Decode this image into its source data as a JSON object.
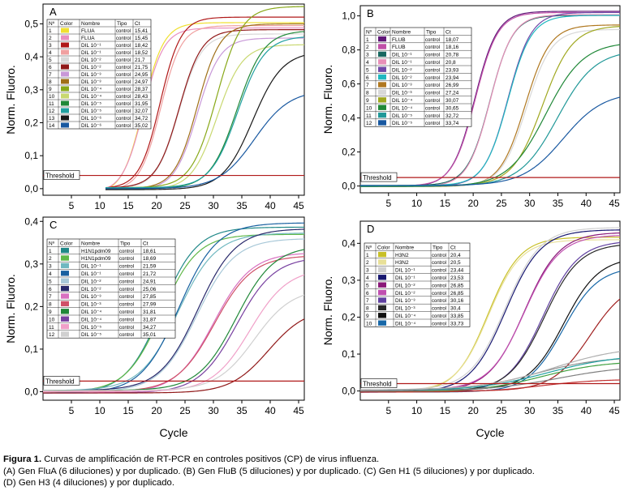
{
  "figure": {
    "xlabel": "Cycle",
    "ylabel": "Norm. Fluoro.",
    "threshold_label": "Threshold",
    "colors": {
      "threshold": "#b01a1a",
      "frame": "#000000"
    }
  },
  "legend_headers": [
    "Nº",
    "Color",
    "Nombre",
    "Tipo",
    "Ct"
  ],
  "chart_data": [
    {
      "id": "A",
      "type": "line",
      "title": "A",
      "xlabel": "",
      "ylabel": "Norm. Fluoro.",
      "xlim": [
        0,
        46
      ],
      "ylim": [
        -0.02,
        0.56
      ],
      "xticks": [
        5,
        10,
        15,
        20,
        25,
        30,
        35,
        40,
        45
      ],
      "ytick_values": [
        0,
        0.1,
        0.2,
        0.3,
        0.4,
        0.5
      ],
      "ytick_labels": [
        "0,0",
        "0,1",
        "0,2",
        "0,3",
        "0,4",
        "0,5"
      ],
      "threshold": 0.04,
      "baseline_start": 11,
      "legend": [
        {
          "n": "1",
          "color": "#f0e030",
          "name": "FLUA",
          "type": "control",
          "ct": "15,41"
        },
        {
          "n": "2",
          "color": "#e890c0",
          "name": "FLUA",
          "type": "control",
          "ct": "15,45"
        },
        {
          "n": "3",
          "color": "#b01818",
          "name": "DIL 10⁻¹",
          "type": "control",
          "ct": "18,42"
        },
        {
          "n": "4",
          "color": "#f0a0a0",
          "name": "DIL 10⁻¹",
          "type": "control",
          "ct": "18,52"
        },
        {
          "n": "5",
          "color": "#d8d8d8",
          "name": "DIL 10⁻²",
          "type": "control",
          "ct": "21,7"
        },
        {
          "n": "6",
          "color": "#901818",
          "name": "DIL 10⁻²",
          "type": "control",
          "ct": "21,75"
        },
        {
          "n": "7",
          "color": "#c898d8",
          "name": "DIL 10⁻³",
          "type": "control",
          "ct": "24,95"
        },
        {
          "n": "8",
          "color": "#a07018",
          "name": "DIL 10⁻³",
          "type": "control",
          "ct": "24,97"
        },
        {
          "n": "9",
          "color": "#88a818",
          "name": "DIL 10⁻⁴",
          "type": "control",
          "ct": "28,37"
        },
        {
          "n": "10",
          "color": "#c8d870",
          "name": "DIL 10⁻⁴",
          "type": "control",
          "ct": "28,43"
        },
        {
          "n": "11",
          "color": "#208838",
          "name": "DIL 10⁻⁵",
          "type": "control",
          "ct": "31,95"
        },
        {
          "n": "12",
          "color": "#20a0a0",
          "name": "DIL 10⁻⁵",
          "type": "control",
          "ct": "32,07"
        },
        {
          "n": "13",
          "color": "#181818",
          "name": "DIL 10⁻⁶",
          "type": "control",
          "ct": "34,72"
        },
        {
          "n": "14",
          "color": "#1858a0",
          "name": "DIL 10⁻⁶",
          "type": "control",
          "ct": "35,02"
        }
      ],
      "series": [
        {
          "color": "#f0e030",
          "ct": 15.41,
          "plateau": 0.52,
          "k": 0.55
        },
        {
          "color": "#e890c0",
          "ct": 15.45,
          "plateau": 0.5,
          "k": 0.55
        },
        {
          "color": "#b01818",
          "ct": 18.42,
          "plateau": 0.52,
          "k": 0.55
        },
        {
          "color": "#f0a0a0",
          "ct": 18.52,
          "plateau": 0.5,
          "k": 0.55
        },
        {
          "color": "#d8d8d8",
          "ct": 21.7,
          "plateau": 0.47,
          "k": 0.5
        },
        {
          "color": "#901818",
          "ct": 21.75,
          "plateau": 0.48,
          "k": 0.5
        },
        {
          "color": "#c898d8",
          "ct": 24.95,
          "plateau": 0.46,
          "k": 0.5
        },
        {
          "color": "#a07018",
          "ct": 24.97,
          "plateau": 0.5,
          "k": 0.5
        },
        {
          "color": "#88a818",
          "ct": 28.37,
          "plateau": 0.55,
          "k": 0.45
        },
        {
          "color": "#c8d870",
          "ct": 28.43,
          "plateau": 0.44,
          "k": 0.45
        },
        {
          "color": "#208838",
          "ct": 31.95,
          "plateau": 0.48,
          "k": 0.42
        },
        {
          "color": "#20a0a0",
          "ct": 32.07,
          "plateau": 0.46,
          "k": 0.42
        },
        {
          "color": "#181818",
          "ct": 34.72,
          "plateau": 0.42,
          "k": 0.38
        },
        {
          "color": "#1858a0",
          "ct": 35.02,
          "plateau": 0.3,
          "k": 0.32
        }
      ]
    },
    {
      "id": "B",
      "type": "line",
      "title": "B",
      "xlabel": "",
      "ylabel": "Norm. Fluoro.",
      "xlim": [
        0,
        46
      ],
      "ylim": [
        -0.04,
        1.06
      ],
      "xticks": [
        5,
        10,
        15,
        20,
        25,
        30,
        35,
        40,
        45
      ],
      "ytick_values": [
        0,
        0.2,
        0.4,
        0.6,
        0.8,
        1.0
      ],
      "ytick_labels": [
        "0,0",
        "0,2",
        "0,4",
        "0,6",
        "0,8",
        "1,0"
      ],
      "threshold": 0.05,
      "baseline_start": 0,
      "legend": [
        {
          "n": "1",
          "color": "#601878",
          "name": "FLUB",
          "type": "control",
          "ct": "18,07"
        },
        {
          "n": "2",
          "color": "#c050a8",
          "name": "FLUB",
          "type": "control",
          "ct": "18,16"
        },
        {
          "n": "3",
          "color": "#186860",
          "name": "DIL 10⁻¹",
          "type": "control",
          "ct": "20,78"
        },
        {
          "n": "4",
          "color": "#e890b8",
          "name": "DIL 10⁻¹",
          "type": "control",
          "ct": "20,8"
        },
        {
          "n": "5",
          "color": "#7048a8",
          "name": "DIL 10⁻²",
          "type": "control",
          "ct": "23,93"
        },
        {
          "n": "6",
          "color": "#20b8c0",
          "name": "DIL 10⁻²",
          "type": "control",
          "ct": "23,94"
        },
        {
          "n": "7",
          "color": "#b07820",
          "name": "DIL 10⁻³",
          "type": "control",
          "ct": "26,99"
        },
        {
          "n": "8",
          "color": "#d8d8d8",
          "name": "DIL 10⁻³",
          "type": "control",
          "ct": "27,24"
        },
        {
          "n": "9",
          "color": "#a0a820",
          "name": "DIL 10⁻⁴",
          "type": "control",
          "ct": "30,07"
        },
        {
          "n": "10",
          "color": "#208838",
          "name": "DIL 10⁻⁴",
          "type": "control",
          "ct": "30,65"
        },
        {
          "n": "11",
          "color": "#209898",
          "name": "DIL 10⁻⁵",
          "type": "control",
          "ct": "32,72"
        },
        {
          "n": "12",
          "color": "#1858a0",
          "name": "DIL 10⁻⁵",
          "type": "control",
          "ct": "33,74"
        }
      ],
      "series": [
        {
          "color": "#601878",
          "ct": 18.07,
          "plateau": 1.03,
          "k": 0.5
        },
        {
          "color": "#c050a8",
          "ct": 18.16,
          "plateau": 1.02,
          "k": 0.5
        },
        {
          "color": "#186860",
          "ct": 20.78,
          "plateau": 1.0,
          "k": 0.5
        },
        {
          "color": "#e890b8",
          "ct": 20.8,
          "plateau": 1.01,
          "k": 0.5
        },
        {
          "color": "#7048a8",
          "ct": 23.93,
          "plateau": 1.02,
          "k": 0.48
        },
        {
          "color": "#20b8c0",
          "ct": 23.94,
          "plateau": 1.0,
          "k": 0.48
        },
        {
          "color": "#b07820",
          "ct": 26.99,
          "plateau": 0.95,
          "k": 0.45
        },
        {
          "color": "#d8d8d8",
          "ct": 27.24,
          "plateau": 0.92,
          "k": 0.45
        },
        {
          "color": "#a0a820",
          "ct": 30.07,
          "plateau": 0.94,
          "k": 0.38
        },
        {
          "color": "#208838",
          "ct": 30.65,
          "plateau": 0.85,
          "k": 0.3
        },
        {
          "color": "#209898",
          "ct": 32.72,
          "plateau": 0.8,
          "k": 0.3
        },
        {
          "color": "#1858a0",
          "ct": 33.74,
          "plateau": 0.55,
          "k": 0.28
        }
      ]
    },
    {
      "id": "C",
      "type": "line",
      "title": "C",
      "xlabel": "Cycle",
      "ylabel": "Norm. Fluoro.",
      "xlim": [
        0,
        46
      ],
      "ylim": [
        -0.02,
        0.41
      ],
      "xticks": [
        5,
        10,
        15,
        20,
        25,
        30,
        35,
        40,
        45
      ],
      "ytick_values": [
        0,
        0.1,
        0.2,
        0.3,
        0.4
      ],
      "ytick_labels": [
        "0,0",
        "0,1",
        "0,2",
        "0,3",
        "0,4"
      ],
      "threshold": 0.025,
      "baseline_start": 0,
      "legend": [
        {
          "n": "1",
          "color": "#208888",
          "name": "H1N1pdm09",
          "type": "control",
          "ct": "18,61"
        },
        {
          "n": "2",
          "color": "#60b848",
          "name": "H1N1pdm09",
          "type": "control",
          "ct": "18,69"
        },
        {
          "n": "3",
          "color": "#70b8c0",
          "name": "DIL 10⁻¹",
          "type": "control",
          "ct": "21,59"
        },
        {
          "n": "4",
          "color": "#1860a0",
          "name": "DIL 10⁻¹",
          "type": "control",
          "ct": "21,72"
        },
        {
          "n": "5",
          "color": "#a8c8d8",
          "name": "DIL 10⁻²",
          "type": "control",
          "ct": "24,91"
        },
        {
          "n": "6",
          "color": "#28286a",
          "name": "DIL 10⁻²",
          "type": "control",
          "ct": "25,06"
        },
        {
          "n": "7",
          "color": "#d870c0",
          "name": "DIL 10⁻³",
          "type": "control",
          "ct": "27,85"
        },
        {
          "n": "8",
          "color": "#d05068",
          "name": "DIL 10⁻³",
          "type": "control",
          "ct": "27,99"
        },
        {
          "n": "9",
          "color": "#208838",
          "name": "DIL 10⁻⁴",
          "type": "control",
          "ct": "31,81"
        },
        {
          "n": "10",
          "color": "#7840a0",
          "name": "DIL 10⁻⁴",
          "type": "control",
          "ct": "31,87"
        },
        {
          "n": "11",
          "color": "#f0a0c8",
          "name": "DIL 10⁻⁵",
          "type": "control",
          "ct": "34,27"
        },
        {
          "n": "12",
          "color": "#d0d0d0",
          "name": "DIL 10⁻⁵",
          "type": "control",
          "ct": "35,01"
        }
      ],
      "series": [
        {
          "color": "#208888",
          "ct": 18.61,
          "plateau": 0.39,
          "k": 0.32
        },
        {
          "color": "#60b848",
          "ct": 18.69,
          "plateau": 0.37,
          "k": 0.32
        },
        {
          "color": "#70b8c0",
          "ct": 21.59,
          "plateau": 0.37,
          "k": 0.3
        },
        {
          "color": "#1860a0",
          "ct": 21.72,
          "plateau": 0.4,
          "k": 0.3
        },
        {
          "color": "#a8c8d8",
          "ct": 24.91,
          "plateau": 0.36,
          "k": 0.3
        },
        {
          "color": "#28286a",
          "ct": 25.06,
          "plateau": 0.38,
          "k": 0.3
        },
        {
          "color": "#d870c0",
          "ct": 27.85,
          "plateau": 0.33,
          "k": 0.3
        },
        {
          "color": "#d05068",
          "ct": 27.99,
          "plateau": 0.32,
          "k": 0.3
        },
        {
          "color": "#208838",
          "ct": 31.81,
          "plateau": 0.34,
          "k": 0.3
        },
        {
          "color": "#7840a0",
          "ct": 31.87,
          "plateau": 0.32,
          "k": 0.3
        },
        {
          "color": "#f0a0c8",
          "ct": 34.27,
          "plateau": 0.29,
          "k": 0.3
        },
        {
          "color": "#d0d0d0",
          "ct": 35.01,
          "plateau": 0.24,
          "k": 0.3
        },
        {
          "color": "#901818",
          "ct": 37.5,
          "plateau": 0.2,
          "k": 0.3
        }
      ]
    },
    {
      "id": "D",
      "type": "line",
      "title": "D",
      "xlabel": "Cycle",
      "ylabel": "Norm. Fluoro.",
      "xlim": [
        0,
        46
      ],
      "ylim": [
        -0.025,
        0.46
      ],
      "xticks": [
        5,
        10,
        15,
        20,
        25,
        30,
        35,
        40,
        45
      ],
      "ytick_values": [
        0,
        0.1,
        0.2,
        0.3,
        0.4
      ],
      "ytick_labels": [
        "0,0",
        "0,1",
        "0,2",
        "0,3",
        "0,4"
      ],
      "threshold": 0.02,
      "baseline_start": 0,
      "legend": [
        {
          "n": "1",
          "color": "#c8c028",
          "name": "H3N2",
          "type": "control",
          "ct": "20,4"
        },
        {
          "n": "2",
          "color": "#e8e098",
          "name": "H3N2",
          "type": "control",
          "ct": "20,5"
        },
        {
          "n": "3",
          "color": "#d0d0d0",
          "name": "DIL 10⁻¹",
          "type": "control",
          "ct": "23,44"
        },
        {
          "n": "4",
          "color": "#181870",
          "name": "DIL 10⁻¹",
          "type": "control",
          "ct": "23,53"
        },
        {
          "n": "5",
          "color": "#8a1878",
          "name": "DIL 10⁻²",
          "type": "control",
          "ct": "26,85"
        },
        {
          "n": "6",
          "color": "#c050b0",
          "name": "DIL 10⁻²",
          "type": "control",
          "ct": "26,85"
        },
        {
          "n": "7",
          "color": "#6040a0",
          "name": "DIL 10⁻³",
          "type": "control",
          "ct": "30,16"
        },
        {
          "n": "8",
          "color": "#282828",
          "name": "DIL 10⁻³",
          "type": "control",
          "ct": "30,4"
        },
        {
          "n": "9",
          "color": "#101010",
          "name": "DIL 10⁻⁴",
          "type": "control",
          "ct": "33,85"
        },
        {
          "n": "10",
          "color": "#1868a8",
          "name": "DIL 10⁻⁴",
          "type": "control",
          "ct": "33,73"
        }
      ],
      "series": [
        {
          "color": "#c8c028",
          "ct": 20.4,
          "plateau": 0.42,
          "k": 0.35
        },
        {
          "color": "#e8e098",
          "ct": 20.5,
          "plateau": 0.41,
          "k": 0.35
        },
        {
          "color": "#d0d0d0",
          "ct": 23.44,
          "plateau": 0.44,
          "k": 0.32
        },
        {
          "color": "#181870",
          "ct": 23.53,
          "plateau": 0.44,
          "k": 0.32
        },
        {
          "color": "#8a1878",
          "ct": 26.85,
          "plateau": 0.43,
          "k": 0.32
        },
        {
          "color": "#c050b0",
          "ct": 26.85,
          "plateau": 0.42,
          "k": 0.32
        },
        {
          "color": "#6040a0",
          "ct": 30.16,
          "plateau": 0.41,
          "k": 0.32
        },
        {
          "color": "#282828",
          "ct": 30.4,
          "plateau": 0.4,
          "k": 0.32
        },
        {
          "color": "#101010",
          "ct": 33.85,
          "plateau": 0.36,
          "k": 0.32
        },
        {
          "color": "#1868a8",
          "ct": 33.73,
          "plateau": 0.34,
          "k": 0.32
        },
        {
          "color": "#a02020",
          "ct": 38.5,
          "plateau": 0.3,
          "k": 0.3
        },
        {
          "color": "#909090",
          "ct": 29.0,
          "plateau": 0.09,
          "k": 0.18
        },
        {
          "color": "#40a040",
          "ct": 30.0,
          "plateau": 0.085,
          "k": 0.18
        },
        {
          "color": "#20a0a0",
          "ct": 31.0,
          "plateau": 0.1,
          "k": 0.16
        },
        {
          "color": "#b0b0b0",
          "ct": 32.0,
          "plateau": 0.12,
          "k": 0.16
        },
        {
          "color": "#c03030",
          "ct": 30.0,
          "plateau": 0.035,
          "k": 0.2
        },
        {
          "color": "#808080",
          "ct": 33.0,
          "plateau": 0.07,
          "k": 0.16
        }
      ]
    }
  ],
  "caption": {
    "bold": "Figura 1.",
    "line1": " Curvas de amplificación de RT-PCR en controles positivos (CP) de virus influenza.",
    "line2": "(A) Gen FluA (6 diluciones) y por duplicado. (B) Gen FluB (5 diluciones) y por duplicado. (C) Gen H1 (5 diluciones) y por duplicado.",
    "line3": "(D) Gen H3 (4 diluciones) y por duplicado."
  }
}
